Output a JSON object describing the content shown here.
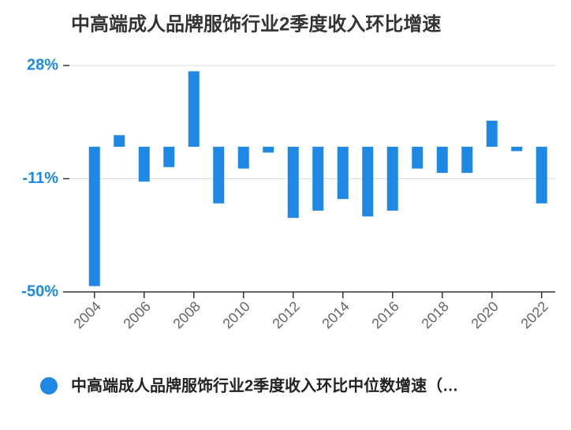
{
  "chart_data": {
    "type": "bar",
    "title": "中高端成人品牌服饰行业2季度收入环比增速",
    "categories": [
      "2004",
      null,
      "2006",
      null,
      "2008",
      null,
      "2010",
      null,
      "2012",
      null,
      "2014",
      null,
      "2016",
      null,
      "2018",
      null,
      "2020",
      null,
      "2022"
    ],
    "series": [
      {
        "name": "中高端成人品牌服饰行业2季度收入环比中位数增速（…",
        "color": "#1e88e5",
        "values": [
          -48,
          4,
          -12,
          -7,
          26,
          -19.5,
          -7.5,
          -2,
          -24.5,
          -22,
          -18,
          -24,
          -22,
          -7.5,
          -9,
          -9,
          9,
          -1.5,
          -19.5
        ]
      }
    ],
    "ylim": [
      -50,
      28
    ],
    "yticks": [
      {
        "value": -50,
        "label": "-50%"
      },
      {
        "value": -11,
        "label": "-11%"
      },
      {
        "value": 28,
        "label": "28%"
      }
    ],
    "grid": true
  }
}
